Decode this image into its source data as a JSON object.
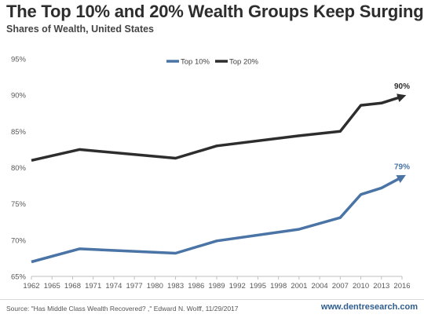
{
  "header": {
    "title": "The Top 10% and 20% Wealth Groups Keep Surging",
    "subtitle": "Shares of Wealth, United States"
  },
  "footer": {
    "source": "Source: \"Has Middle Class Wealth Recovered? ,\" Edward N. Wolff, 11/29/2017",
    "site": "www.dentresearch.com"
  },
  "chart_data": {
    "type": "line",
    "title": "",
    "xlabel": "",
    "ylabel": "",
    "x": [
      1962,
      1969,
      1983,
      1989,
      2001,
      2007,
      2010,
      2013,
      2016
    ],
    "x_ticks": [
      "1962",
      "1965",
      "1968",
      "1971",
      "1974",
      "1977",
      "1980",
      "1983",
      "1986",
      "1989",
      "1992",
      "1995",
      "1998",
      "2001",
      "2004",
      "2007",
      "2010",
      "2013",
      "2016"
    ],
    "y_ticks": [
      "65%",
      "70%",
      "75%",
      "80%",
      "85%",
      "90%",
      "95%"
    ],
    "ylim": [
      65,
      95
    ],
    "xlim": [
      1962,
      2016
    ],
    "grid": false,
    "legend_position": "top-center",
    "series": [
      {
        "name": "Top 10%",
        "color": "#4a74a5",
        "values": [
          67.0,
          68.8,
          68.2,
          69.9,
          71.5,
          73.1,
          76.3,
          77.2,
          78.7
        ],
        "end_label": "79%",
        "arrow": true
      },
      {
        "name": "Top 20%",
        "color": "#2d2d2d",
        "values": [
          81.0,
          82.5,
          81.3,
          83.0,
          84.4,
          85.0,
          88.6,
          88.9,
          89.8
        ],
        "end_label": "90%",
        "arrow": true
      }
    ]
  }
}
